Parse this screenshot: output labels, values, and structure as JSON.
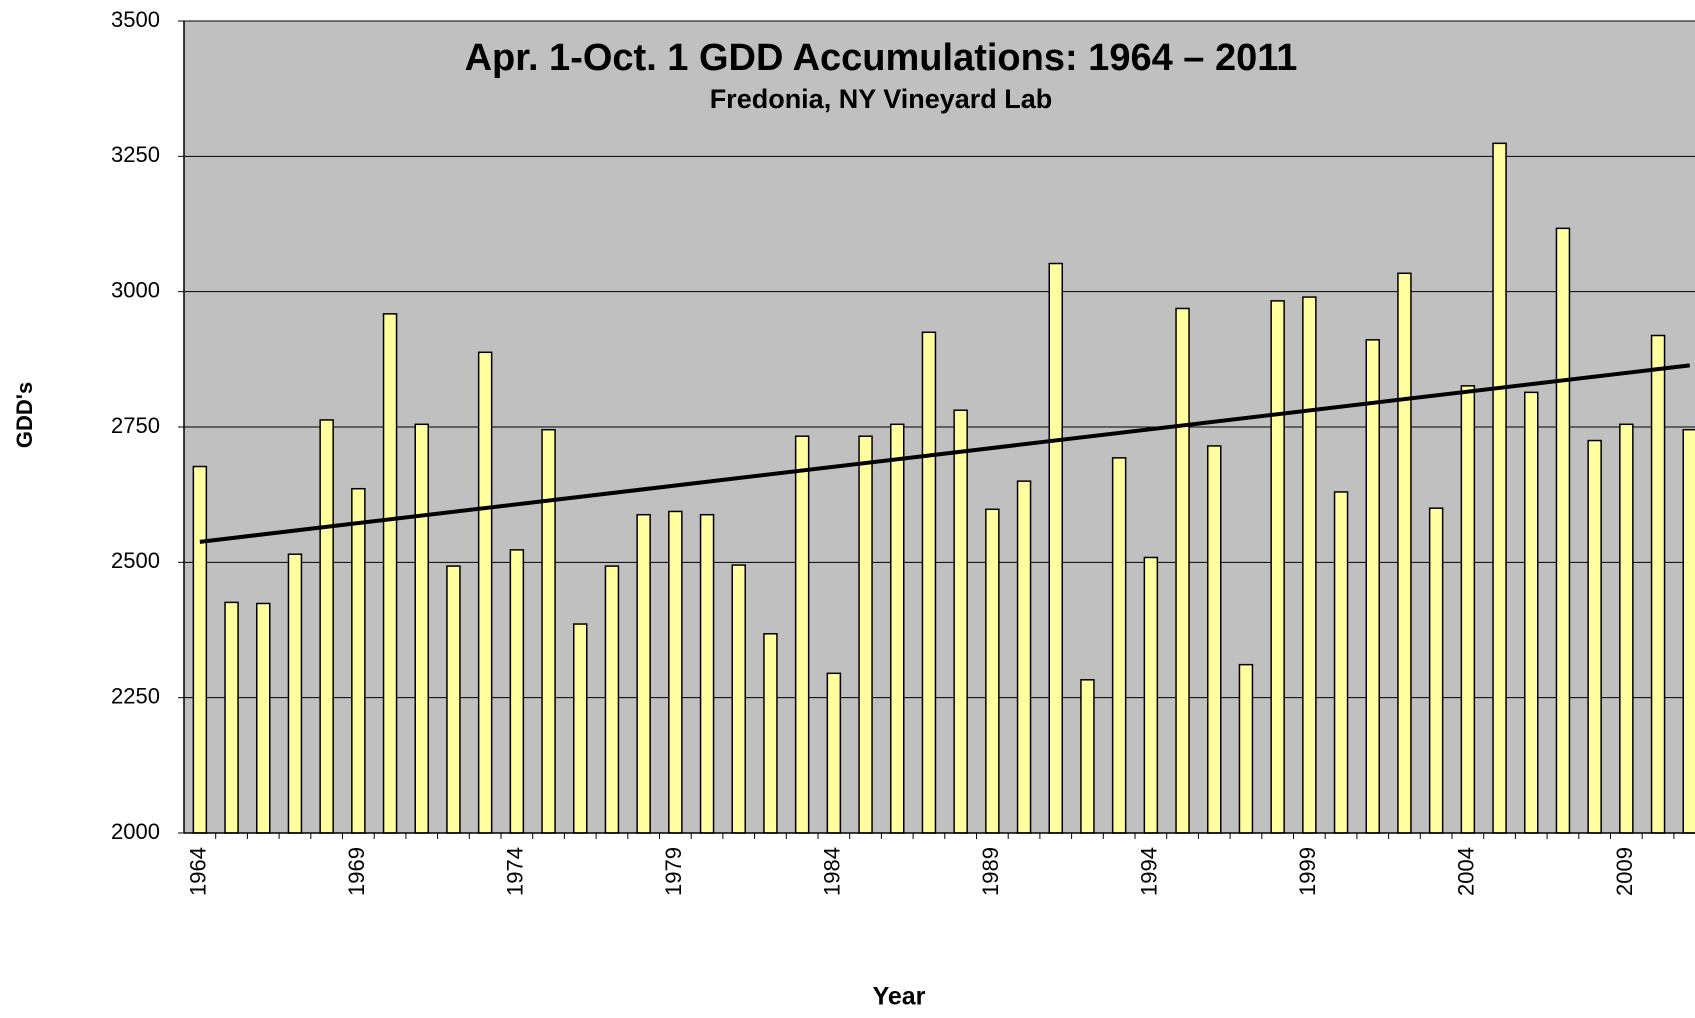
{
  "chart_data": {
    "type": "bar",
    "title": "Apr. 1-Oct. 1 GDD Accumulations: 1964 – 2011",
    "subtitle": "Fredonia, NY Vineyard Lab",
    "x_label": "Year",
    "y_label": "GDD's",
    "categories": [
      "1964",
      null,
      null,
      null,
      null,
      "1969",
      null,
      null,
      null,
      null,
      "1974",
      null,
      null,
      null,
      null,
      "1979",
      null,
      null,
      null,
      null,
      "1984",
      null,
      null,
      null,
      null,
      "1989",
      null,
      null,
      null,
      null,
      "1994",
      null,
      null,
      null,
      null,
      "1999",
      null,
      null,
      null,
      null,
      "2004",
      null,
      null,
      null,
      null,
      "2009",
      null,
      null
    ],
    "values": [
      2677,
      2426,
      2424,
      2515,
      2763,
      2636,
      2959,
      2755,
      2493,
      2888,
      2523,
      2745,
      2386,
      2493,
      2588,
      2594,
      2588,
      2495,
      2368,
      2733,
      2295,
      2733,
      2755,
      2925,
      2781,
      2598,
      2650,
      3052,
      2283,
      2693,
      2509,
      2969,
      2715,
      2311,
      2983,
      2990,
      2630,
      2911,
      3034,
      2600,
      2826,
      3274,
      2814,
      3117,
      2725,
      2755,
      2919,
      2745
    ],
    "color": "#ffffa0",
    "trendline": true,
    "ylim": [
      2000,
      3500
    ],
    "yticks": [
      2000,
      2250,
      2500,
      2750,
      3000,
      3250,
      3500
    ],
    "grid": true
  }
}
